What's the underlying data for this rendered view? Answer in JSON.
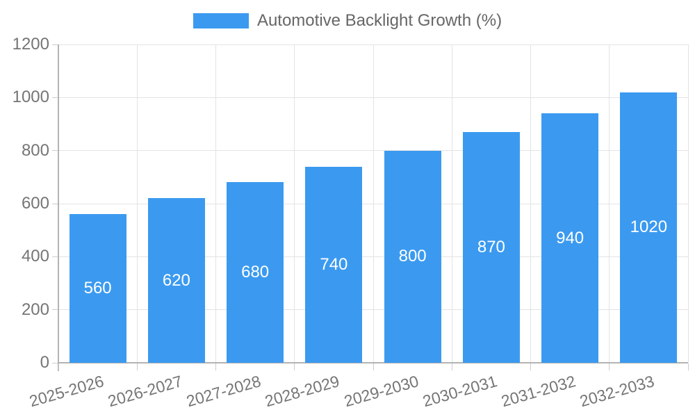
{
  "chart_data": {
    "type": "bar",
    "title": "Automotive Backlight Growth (%)",
    "legend": [
      "Automotive Backlight Growth (%)"
    ],
    "legend_position": "top",
    "categories": [
      "2025-2026",
      "2026-2027",
      "2027-2028",
      "2028-2029",
      "2029-2030",
      "2030-2031",
      "2031-2032",
      "2032-2033"
    ],
    "values": [
      560,
      620,
      680,
      740,
      800,
      870,
      940,
      1020
    ],
    "value_labels_shown": true,
    "xlabel": "",
    "ylabel": "",
    "ylim": [
      0,
      1200
    ],
    "ytick_interval": 200,
    "ytick_labels": [
      "0",
      "200",
      "400",
      "600",
      "800",
      "1000",
      "1200"
    ],
    "grid": true,
    "x_label_rotation_deg": -16,
    "colors": {
      "bar": "#3b9af0",
      "value_label": "#ffffff",
      "tick_label": "#757575",
      "legend_text": "#666666",
      "gridline": "#e3e3e3",
      "axis_line": "#b3b3b3",
      "tick_mark": "#cccccc",
      "background": "#ffffff"
    }
  }
}
